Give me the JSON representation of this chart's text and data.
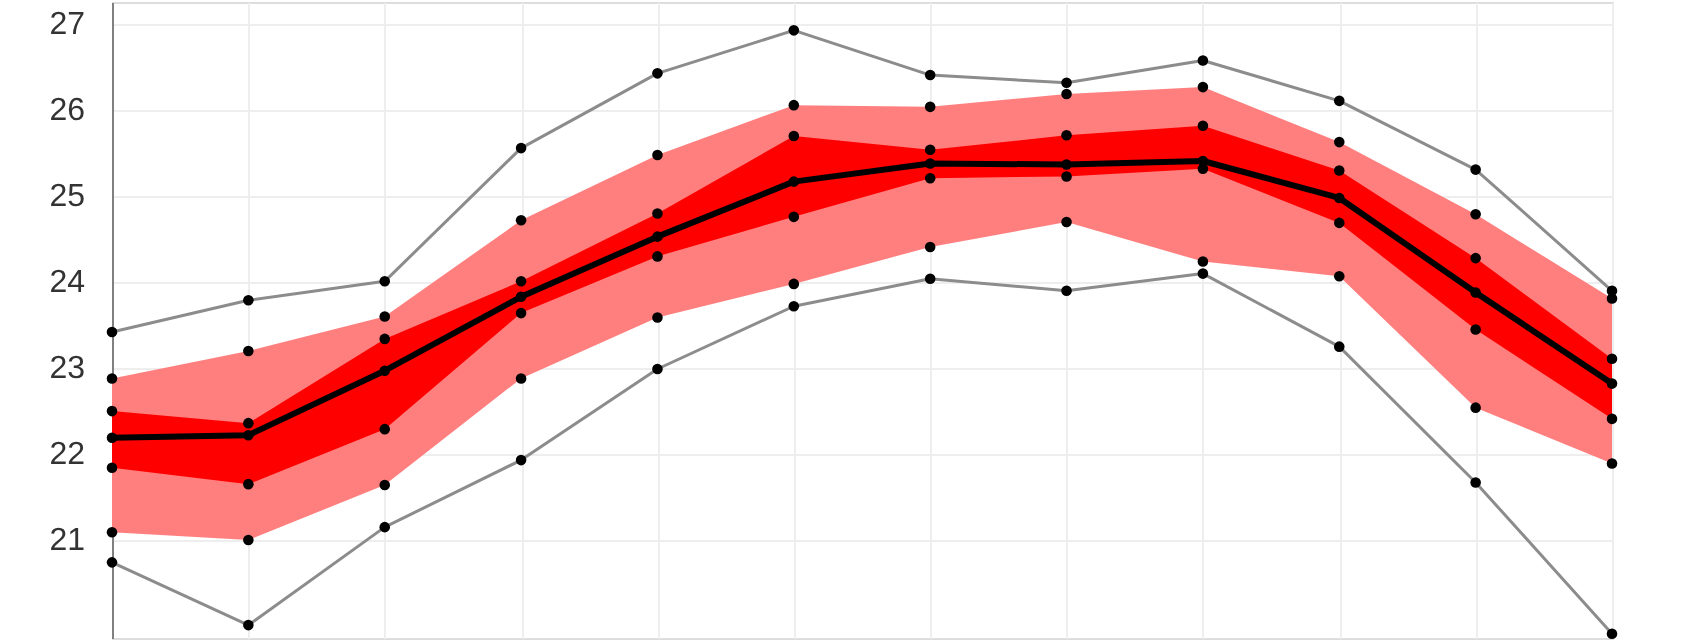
{
  "chart_data": {
    "type": "line",
    "categories": [
      null,
      null,
      null,
      null,
      null,
      null,
      null,
      null,
      null,
      null,
      null,
      null
    ],
    "ylim": [
      19.85,
      27.25
    ],
    "yticks": [
      21,
      22,
      23,
      24,
      25,
      26,
      27
    ],
    "grid": true,
    "marker": "circle",
    "line_style": "solid",
    "tick_labels": "y",
    "series": [
      {
        "type": "line",
        "color": "#ff7f7f",
        "values": [
          null,
          null,
          null,
          null,
          null,
          null,
          null,
          null,
          null,
          null,
          null,
          null
        ],
        "upper": [
          22.87,
          23.19,
          23.59,
          24.71,
          25.47,
          26.05,
          26.03,
          26.18,
          26.26,
          25.62,
          24.78,
          23.8
        ],
        "lower": [
          21.08,
          20.99,
          21.63,
          22.87,
          23.58,
          23.97,
          24.4,
          24.69,
          24.23,
          24.06,
          22.53,
          21.88
        ]
      },
      {
        "type": "line",
        "color": "#ff0000",
        "values": [
          null,
          null,
          null,
          null,
          null,
          null,
          null,
          null,
          null,
          null,
          null,
          null
        ],
        "upper": [
          22.49,
          22.35,
          23.33,
          24.0,
          24.79,
          25.69,
          25.53,
          25.7,
          25.81,
          25.29,
          24.27,
          23.1
        ],
        "lower": [
          21.83,
          21.64,
          22.28,
          23.63,
          24.29,
          24.75,
          25.2,
          25.22,
          25.31,
          24.68,
          23.44,
          22.4
        ]
      },
      {
        "type": "line",
        "color": "#8c8c8c",
        "values": [
          23.41,
          23.78,
          24.0,
          25.55,
          26.42,
          26.92,
          26.4,
          26.31,
          26.57,
          26.1,
          25.3,
          23.89
        ]
      },
      {
        "type": "line",
        "color": "#8c8c8c",
        "values": [
          20.73,
          20.0,
          21.14,
          21.92,
          22.98,
          23.71,
          24.03,
          23.89,
          24.09,
          23.24,
          21.66,
          19.9
        ]
      },
      {
        "color": "#000000",
        "values": [
          22.18,
          22.21,
          22.96,
          23.82,
          24.52,
          25.16,
          25.37,
          25.36,
          25.4,
          24.97,
          23.87,
          22.81
        ]
      },
      {
        "type": "scatter",
        "color": "#000000",
        "values": [
          22.87,
          23.19,
          23.59,
          24.71,
          25.47,
          26.05,
          26.03,
          26.18,
          26.26,
          25.62,
          24.78,
          23.8
        ]
      },
      {
        "type": "scatter",
        "color": "#000000",
        "values": [
          21.08,
          20.99,
          21.63,
          22.87,
          23.58,
          23.97,
          24.4,
          24.69,
          24.23,
          24.06,
          22.53,
          21.88
        ]
      },
      {
        "type": "scatter",
        "color": "#000000",
        "values": [
          22.49,
          22.35,
          23.33,
          24.0,
          24.79,
          25.69,
          25.53,
          25.7,
          25.81,
          25.29,
          24.27,
          23.1
        ]
      },
      {
        "type": "scatter",
        "color": "#000000",
        "values": [
          21.83,
          21.64,
          22.28,
          23.63,
          24.29,
          24.75,
          25.2,
          25.22,
          25.31,
          24.68,
          23.44,
          22.4
        ]
      }
    ]
  }
}
